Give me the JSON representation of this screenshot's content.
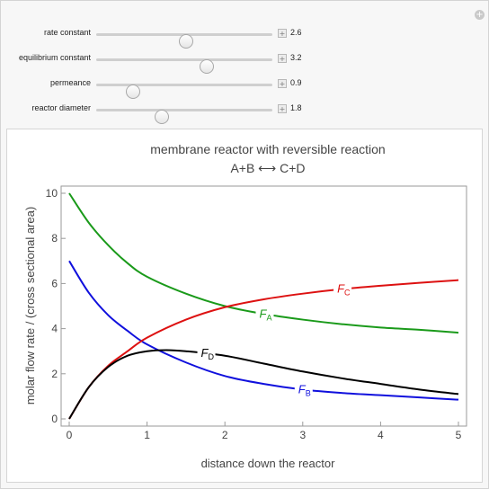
{
  "controls": [
    {
      "label": "rate constant",
      "value": "2.6",
      "level": 0.51
    },
    {
      "label": "equilibrium constant",
      "value": "3.2",
      "level": 0.63
    },
    {
      "label": "permeance",
      "value": "0.9",
      "level": 0.21
    },
    {
      "label": "reactor diameter",
      "value": "1.8",
      "level": 0.37
    }
  ],
  "icons": {
    "add_button": "plus-icon",
    "corner_button": "plus-circle-icon"
  },
  "chart_data": {
    "type": "line",
    "title": "membrane reactor with reversible reaction",
    "subtitle": "A+B ⟷ C+D",
    "xlabel": "distance down the reactor",
    "ylabel": "molar flow rate / (cross sectional area)",
    "xlim": [
      0,
      5
    ],
    "ylim": [
      0,
      10
    ],
    "xticks": [
      "0",
      "1",
      "2",
      "3",
      "4",
      "5"
    ],
    "yticks": [
      "0",
      "2",
      "4",
      "6",
      "8",
      "10"
    ],
    "series": [
      {
        "name": "F",
        "sub": "A",
        "color": "#1a9a1a",
        "x": [
          0,
          0.25,
          0.5,
          0.75,
          1,
          1.5,
          2,
          2.5,
          3,
          3.5,
          4,
          4.5,
          5
        ],
        "y": [
          10,
          8.7,
          7.7,
          6.9,
          6.3,
          5.55,
          5.0,
          4.65,
          4.4,
          4.2,
          4.05,
          3.95,
          3.82
        ]
      },
      {
        "name": "F",
        "sub": "B",
        "color": "#1010dd",
        "x": [
          0,
          0.25,
          0.5,
          0.75,
          1,
          1.5,
          2,
          2.5,
          3,
          3.5,
          4,
          4.5,
          5
        ],
        "y": [
          7,
          5.6,
          4.6,
          3.9,
          3.3,
          2.5,
          1.9,
          1.55,
          1.3,
          1.15,
          1.05,
          0.95,
          0.85
        ]
      },
      {
        "name": "F",
        "sub": "C",
        "color": "#dd1111",
        "x": [
          0,
          0.25,
          0.5,
          0.75,
          1,
          1.5,
          2,
          2.5,
          3,
          3.5,
          4,
          4.5,
          5
        ],
        "y": [
          0,
          1.4,
          2.35,
          3.0,
          3.6,
          4.4,
          4.95,
          5.3,
          5.55,
          5.75,
          5.9,
          6.03,
          6.15
        ]
      },
      {
        "name": "F",
        "sub": "D",
        "color": "#000000",
        "x": [
          0,
          0.25,
          0.5,
          0.75,
          1,
          1.25,
          1.5,
          2,
          2.5,
          3,
          3.5,
          4,
          4.5,
          5
        ],
        "y": [
          0,
          1.4,
          2.3,
          2.8,
          3.0,
          3.05,
          3.0,
          2.8,
          2.45,
          2.1,
          1.8,
          1.55,
          1.3,
          1.1
        ]
      }
    ],
    "grid": false,
    "legend": "inline labels on curves"
  }
}
